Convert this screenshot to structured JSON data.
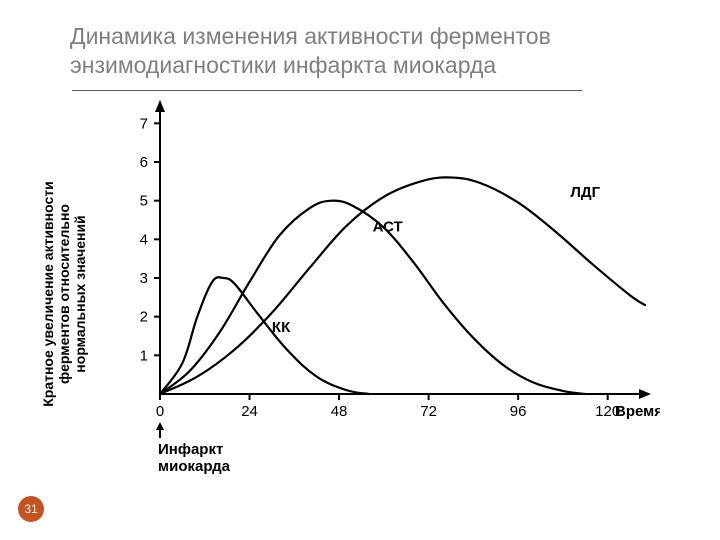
{
  "title": "Динамика изменения активности ферментов энзимодиагностики инфаркта миокарда",
  "page_number": "31",
  "chart": {
    "type": "line",
    "background_color": "#ffffff",
    "axis_color": "#000000",
    "grid_color": "#ffffff",
    "line_color": "#000000",
    "line_width": 2.2,
    "xlim": [
      0,
      130
    ],
    "ylim": [
      0,
      7.5
    ],
    "xtick_values": [
      0,
      24,
      48,
      72,
      96,
      120
    ],
    "xtick_labels": [
      "0",
      "24",
      "48",
      "72",
      "96",
      "120"
    ],
    "ytick_values": [
      1,
      2,
      3,
      4,
      5,
      6,
      7
    ],
    "ytick_labels": [
      "1",
      "2",
      "3",
      "4",
      "5",
      "6",
      "7"
    ],
    "x_axis_label": "Время, ч",
    "y_axis_label": "Кратное увеличение активности\nферментов относительно\nнормальных значений",
    "origin_marker_label": "Инфаркт\nмиокарда",
    "label_fontsize": 14,
    "tick_fontsize": 15,
    "series": [
      {
        "name": "КК",
        "label": "КК",
        "label_pos": {
          "x": 30,
          "y": 1.6
        },
        "points": [
          {
            "x": 0,
            "y": 0.0
          },
          {
            "x": 6,
            "y": 0.8
          },
          {
            "x": 10,
            "y": 2.0
          },
          {
            "x": 14,
            "y": 2.9
          },
          {
            "x": 17,
            "y": 3.0
          },
          {
            "x": 20,
            "y": 2.85
          },
          {
            "x": 26,
            "y": 2.1
          },
          {
            "x": 34,
            "y": 1.15
          },
          {
            "x": 42,
            "y": 0.45
          },
          {
            "x": 50,
            "y": 0.1
          },
          {
            "x": 56,
            "y": 0.0
          }
        ]
      },
      {
        "name": "АСТ",
        "label": "АСТ",
        "label_pos": {
          "x": 57,
          "y": 4.2
        },
        "points": [
          {
            "x": 0,
            "y": 0.0
          },
          {
            "x": 8,
            "y": 0.6
          },
          {
            "x": 16,
            "y": 1.6
          },
          {
            "x": 24,
            "y": 2.9
          },
          {
            "x": 32,
            "y": 4.1
          },
          {
            "x": 40,
            "y": 4.8
          },
          {
            "x": 46,
            "y": 5.0
          },
          {
            "x": 52,
            "y": 4.85
          },
          {
            "x": 60,
            "y": 4.3
          },
          {
            "x": 68,
            "y": 3.4
          },
          {
            "x": 76,
            "y": 2.35
          },
          {
            "x": 84,
            "y": 1.45
          },
          {
            "x": 92,
            "y": 0.75
          },
          {
            "x": 100,
            "y": 0.3
          },
          {
            "x": 108,
            "y": 0.08
          },
          {
            "x": 114,
            "y": 0.0
          }
        ]
      },
      {
        "name": "ЛДГ",
        "label": "ЛДГ",
        "label_pos": {
          "x": 110,
          "y": 5.1
        },
        "points": [
          {
            "x": 0,
            "y": 0.0
          },
          {
            "x": 10,
            "y": 0.45
          },
          {
            "x": 20,
            "y": 1.15
          },
          {
            "x": 30,
            "y": 2.1
          },
          {
            "x": 40,
            "y": 3.25
          },
          {
            "x": 50,
            "y": 4.35
          },
          {
            "x": 60,
            "y": 5.1
          },
          {
            "x": 70,
            "y": 5.5
          },
          {
            "x": 78,
            "y": 5.6
          },
          {
            "x": 86,
            "y": 5.45
          },
          {
            "x": 96,
            "y": 4.95
          },
          {
            "x": 106,
            "y": 4.2
          },
          {
            "x": 116,
            "y": 3.35
          },
          {
            "x": 126,
            "y": 2.55
          },
          {
            "x": 130,
            "y": 2.3
          }
        ]
      }
    ]
  }
}
